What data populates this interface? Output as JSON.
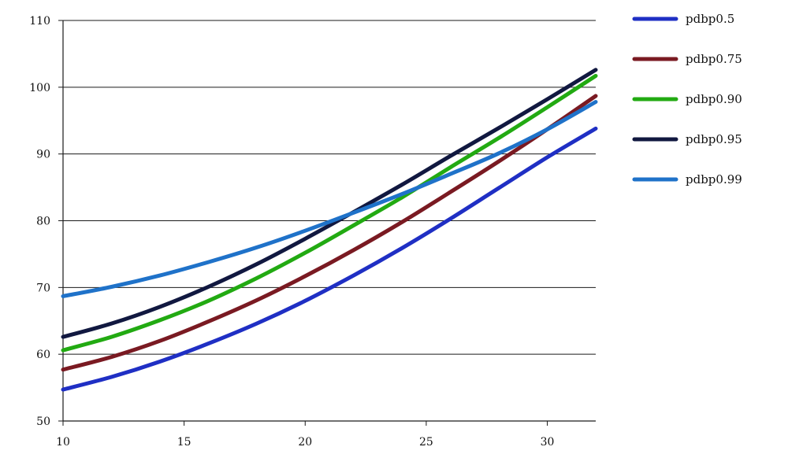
{
  "chart_data": {
    "type": "line",
    "title": "",
    "xlabel": "",
    "ylabel": "",
    "xlim": [
      10,
      32
    ],
    "ylim": [
      50,
      110
    ],
    "x_ticks": [
      "10",
      "15",
      "20",
      "25",
      "30"
    ],
    "y_ticks": [
      "50",
      "60",
      "70",
      "80",
      "90",
      "100",
      "110"
    ],
    "grid": "horizontal",
    "legend_position": "right",
    "x": [
      10,
      12,
      14,
      16,
      18,
      20,
      22,
      24,
      26,
      28,
      30,
      32
    ],
    "series": [
      {
        "name": "pdbp0.5",
        "color": "#1f2fc4",
        "values": [
          54.7,
          56.6,
          58.9,
          61.6,
          64.6,
          68.0,
          71.8,
          75.9,
          80.3,
          84.9,
          89.5,
          93.8
        ]
      },
      {
        "name": "pdbp0.75",
        "color": "#7a1a22",
        "values": [
          57.7,
          59.6,
          62.0,
          64.9,
          68.1,
          71.7,
          75.6,
          79.8,
          84.3,
          88.9,
          93.7,
          98.7
        ]
      },
      {
        "name": "pdbp0.90",
        "color": "#22aa12",
        "values": [
          60.6,
          62.6,
          65.1,
          68.0,
          71.4,
          75.2,
          79.3,
          83.5,
          88.0,
          92.4,
          97.0,
          101.7
        ]
      },
      {
        "name": "pdbp0.95",
        "color": "#111840",
        "values": [
          62.6,
          64.6,
          67.1,
          70.1,
          73.5,
          77.3,
          81.3,
          85.4,
          89.7,
          93.9,
          98.2,
          102.6
        ]
      },
      {
        "name": "pdbp0.99",
        "color": "#1f72c9",
        "values": [
          68.7,
          70.1,
          71.8,
          73.8,
          76.0,
          78.5,
          81.2,
          84.0,
          87.0,
          90.1,
          93.7,
          97.8
        ]
      }
    ]
  }
}
